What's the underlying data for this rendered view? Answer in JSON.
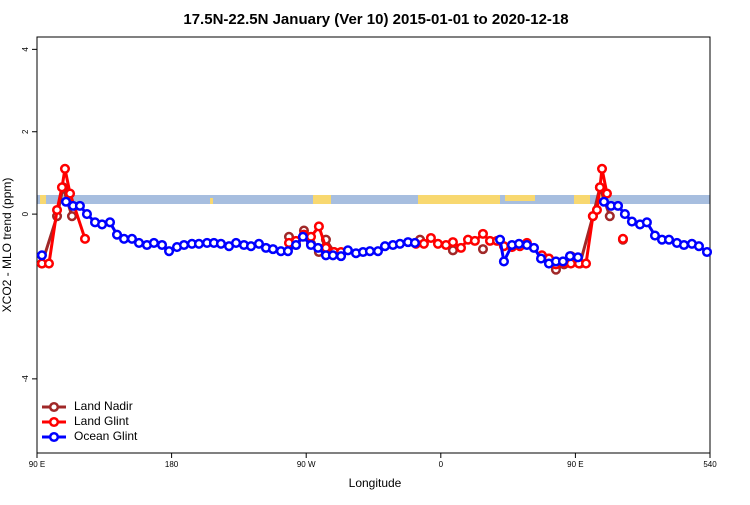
{
  "chart_data": {
    "type": "line",
    "title": "17.5N-22.5N January (Ver 10)   2015-01-01 to 2020-12-18",
    "xlabel": "Longitude",
    "ylabel": "XCO2 - MLO trend (ppm)",
    "xlim": [
      90,
      540
    ],
    "ylim": [
      -5.8,
      4.3
    ],
    "xticks": [
      {
        "value": 90,
        "label": "90 E"
      },
      180,
      {
        "value": 270,
        "label": "90 W"
      },
      {
        "value": 360,
        "label": "0"
      },
      {
        "value": 450,
        "label": "90 E"
      },
      540
    ],
    "yticks": [
      -4,
      0,
      2,
      4
    ],
    "legend": "bottom-left",
    "series": [
      {
        "name": "Land Nadir",
        "color": "#a02828",
        "x": [
          93.3,
          103.4,
          107.4,
          113.4,
          null,
          258.5,
          263.2,
          268.5,
          273.2,
          278.5,
          283.2,
          288.6,
          null,
          346.1,
          null,
          368.1,
          null,
          388.2,
          null,
          432.3,
          437.0,
          442.4,
          447.0,
          453.1,
          461.7,
          466.4,
          473.0,
          null,
          481.8
        ],
        "values": [
          -1.2,
          -0.05,
          0.65,
          -0.05,
          null,
          -0.55,
          -0.75,
          -0.4,
          -0.72,
          -0.92,
          -0.62,
          -0.92,
          null,
          -0.62,
          null,
          -0.88,
          null,
          -0.85,
          null,
          -1.08,
          -1.35,
          -1.22,
          -1.02,
          -1.2,
          -0.05,
          0.65,
          -0.05,
          null,
          -0.62
        ]
      },
      {
        "name": "Land Glint",
        "color": "#ff0000",
        "x": [
          93.3,
          98.0,
          103.4,
          106.7,
          108.7,
          112.1,
          122.1,
          null,
          258.5,
          263.2,
          268.5,
          273.2,
          278.5,
          283.2,
          288.6,
          293.3,
          null,
          343.4,
          348.7,
          353.4,
          358.1,
          363.5,
          368.1,
          373.5,
          378.2,
          382.8,
          388.2,
          392.9,
          397.6,
          402.2,
          407.6,
          412.9,
          417.6,
          null,
          427.6,
          432.3,
          437.0,
          442.4,
          447.0,
          452.4,
          457.1,
          461.7,
          464.4,
          466.4,
          467.8,
          471.1,
          null,
          481.8
        ],
        "values": [
          -1.2,
          -1.2,
          0.1,
          0.65,
          1.1,
          0.5,
          -0.6,
          null,
          -0.7,
          -0.65,
          -0.5,
          -0.55,
          -0.3,
          -0.82,
          -0.92,
          -0.92,
          null,
          -0.72,
          -0.72,
          -0.58,
          -0.72,
          -0.75,
          -0.68,
          -0.82,
          -0.62,
          -0.65,
          -0.48,
          -0.65,
          -0.65,
          -0.78,
          -0.8,
          -0.78,
          -0.7,
          null,
          -1.0,
          -1.08,
          -1.22,
          -1.18,
          -1.2,
          -1.2,
          -1.2,
          -0.05,
          0.1,
          0.65,
          1.1,
          0.5,
          null,
          -0.6
        ]
      },
      {
        "name": "Ocean Glint",
        "color": "#0000ff",
        "x": [
          93.3,
          null,
          109.4,
          114.1,
          118.7,
          123.4,
          128.8,
          133.5,
          138.8,
          143.5,
          148.2,
          153.5,
          158.2,
          163.5,
          168.2,
          173.6,
          178.3,
          183.6,
          188.3,
          193.6,
          198.3,
          203.7,
          208.3,
          213.0,
          218.4,
          223.1,
          228.4,
          233.1,
          238.4,
          243.1,
          247.8,
          253.1,
          257.8,
          263.2,
          267.8,
          273.2,
          277.9,
          283.2,
          287.9,
          293.3,
          297.9,
          303.3,
          308.0,
          312.6,
          318.0,
          322.7,
          328.0,
          332.7,
          338.1,
          342.7,
          null,
          399.6,
          402.2,
          407.6,
          412.3,
          417.6,
          422.3,
          427.0,
          432.3,
          437.0,
          441.7,
          446.4,
          451.7,
          null,
          469.1,
          473.8,
          478.5,
          483.1,
          487.8,
          493.2,
          497.8,
          503.2,
          507.9,
          512.6,
          517.9,
          522.6,
          527.9,
          532.6,
          538.0
        ],
        "values": [
          -1.0,
          null,
          0.3,
          0.2,
          0.2,
          0.0,
          -0.2,
          -0.25,
          -0.2,
          -0.5,
          -0.6,
          -0.6,
          -0.7,
          -0.75,
          -0.7,
          -0.75,
          -0.9,
          -0.8,
          -0.75,
          -0.72,
          -0.72,
          -0.7,
          -0.7,
          -0.72,
          -0.78,
          -0.7,
          -0.75,
          -0.78,
          -0.72,
          -0.82,
          -0.85,
          -0.9,
          -0.9,
          -0.75,
          -0.55,
          -0.75,
          -0.82,
          -1.0,
          -1.0,
          -1.02,
          -0.88,
          -0.95,
          -0.92,
          -0.9,
          -0.9,
          -0.78,
          -0.75,
          -0.72,
          -0.68,
          -0.7,
          null,
          -0.62,
          -1.15,
          -0.75,
          -0.72,
          -0.75,
          -0.82,
          -1.08,
          -1.2,
          -1.15,
          -1.15,
          -1.02,
          -1.05,
          null,
          0.3,
          0.2,
          0.2,
          0.0,
          -0.18,
          -0.25,
          -0.2,
          -0.52,
          -0.62,
          -0.62,
          -0.7,
          -0.75,
          -0.72,
          -0.78,
          -0.92
        ]
      }
    ]
  }
}
